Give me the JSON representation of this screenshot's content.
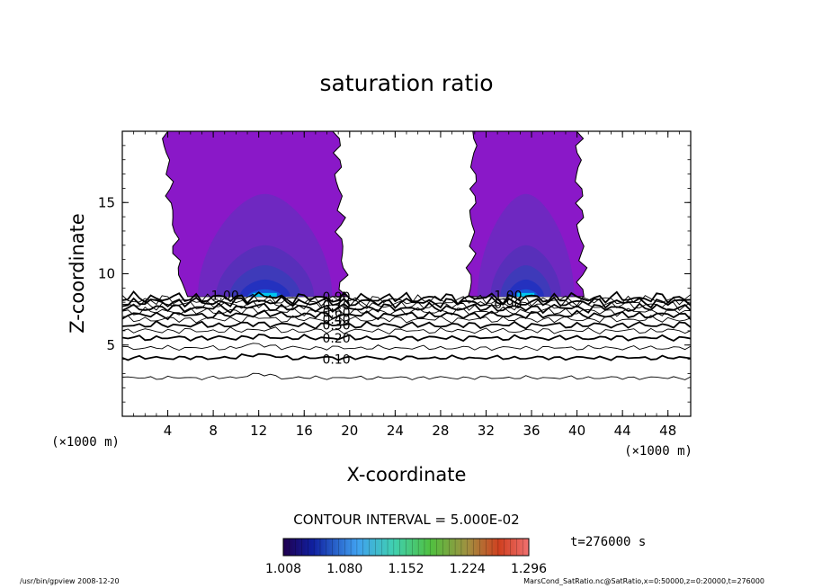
{
  "chart_data": {
    "type": "contour",
    "title": "saturation ratio",
    "xlabel": "X-coordinate",
    "ylabel": "Z-coordinate",
    "x_unit": "(×1000 m)",
    "y_unit": "(×1000 m)",
    "xlim": [
      0,
      50
    ],
    "ylim": [
      0,
      20
    ],
    "x_ticks": [
      4,
      8,
      12,
      16,
      20,
      24,
      28,
      32,
      36,
      40,
      44,
      48
    ],
    "y_ticks": [
      5,
      10,
      15
    ],
    "contour_interval_text": "CONTOUR INTERVAL = 5.000E-02",
    "time_text": "t=276000 s",
    "contour_labels": [
      {
        "text": "1.00",
        "x": 7.8,
        "z": 8.5
      },
      {
        "text": "0.90",
        "x": 17.6,
        "z": 8.4
      },
      {
        "text": "0.70",
        "x": 17.6,
        "z": 7.8
      },
      {
        "text": "0.60",
        "x": 17.6,
        "z": 7.3
      },
      {
        "text": "0.40",
        "x": 17.6,
        "z": 6.8
      },
      {
        "text": "0.30",
        "x": 17.6,
        "z": 6.4
      },
      {
        "text": "0.20",
        "x": 17.6,
        "z": 5.5
      },
      {
        "text": "0.10",
        "x": 17.6,
        "z": 4.0
      },
      {
        "text": "1.00",
        "x": 32.7,
        "z": 8.5
      },
      {
        "text": "0.90",
        "x": 32.7,
        "z": 7.9
      }
    ],
    "supersaturated_regions": [
      {
        "x_left_bottom": 5.6,
        "x_left_top": 3.7,
        "x_right_bottom": 19.5,
        "x_right_top": 18.8,
        "z_base": 8.4
      },
      {
        "x_left_bottom": 30.5,
        "x_left_top": 31.0,
        "x_right_bottom": 40.5,
        "x_right_top": 40.0,
        "z_base": 8.4
      }
    ],
    "colorbar": {
      "min": 1.008,
      "max": 1.296,
      "tick_labels": [
        "1.008",
        "1.080",
        "1.152",
        "1.224",
        "1.296"
      ]
    },
    "colors": {
      "fill_base": "#8a18c8",
      "fill_mid": "#6a2cc0",
      "fill_deep": "#3a3cb8",
      "fill_core": "#2030c0",
      "fill_peak": "#00c8f0"
    }
  },
  "footer": {
    "left": "/usr/bin/gpview  2008-12-20",
    "right": "MarsCond_SatRatio.nc@SatRatio,x=0:50000,z=0:20000,t=276000"
  }
}
